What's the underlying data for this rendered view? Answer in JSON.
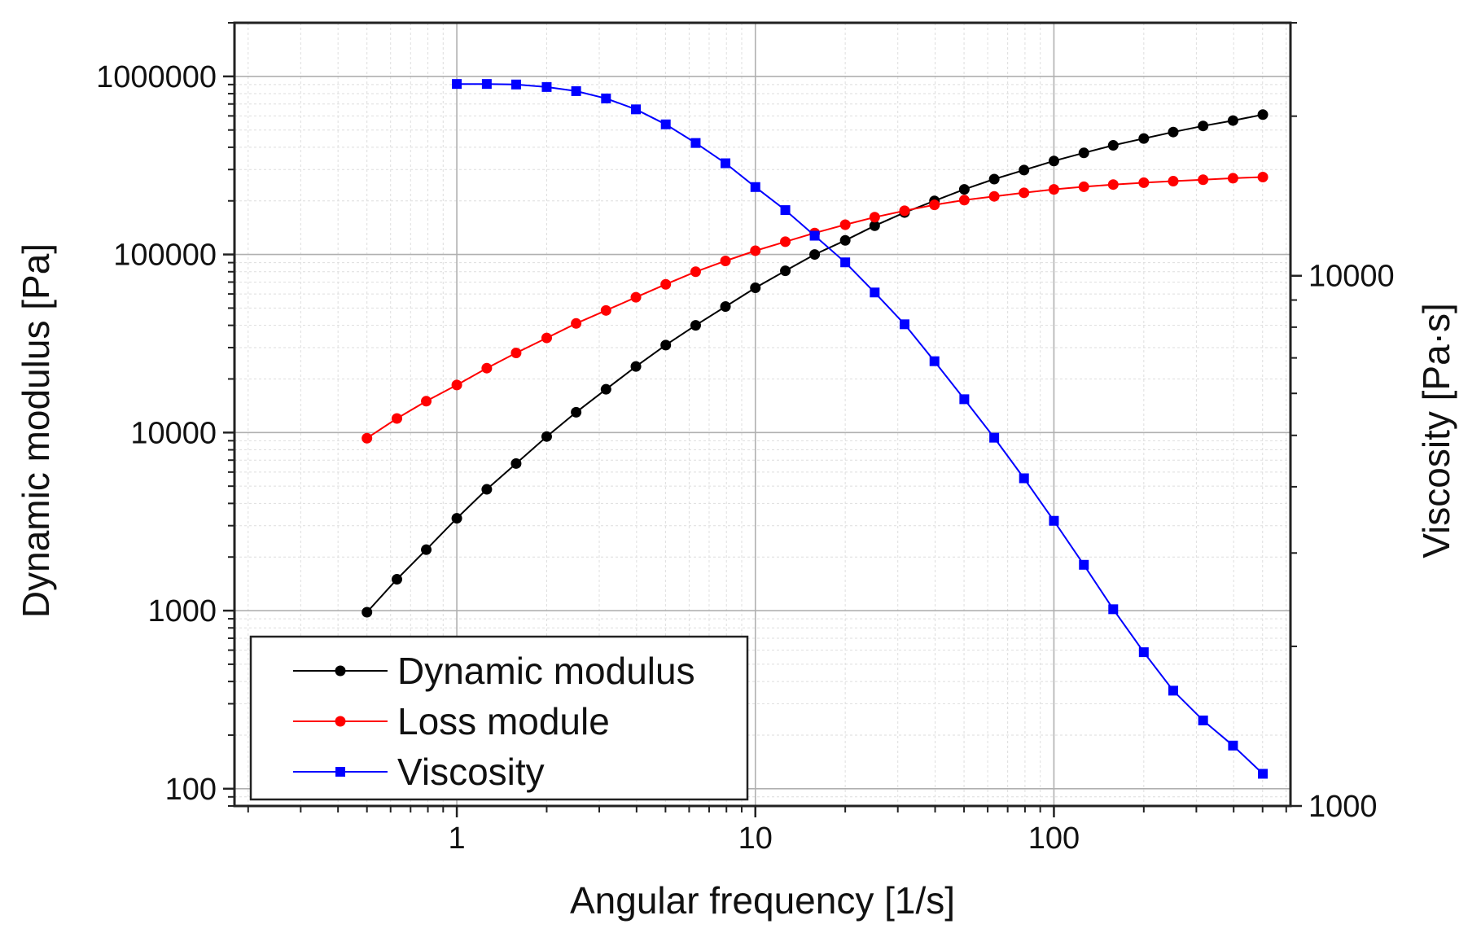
{
  "chart_data": {
    "type": "line",
    "xscale": "log",
    "y1scale": "log",
    "y2scale": "log",
    "xlabel": "Angular frequency [1/s]",
    "ylabel": "Dynamic modulus [Pa]",
    "y2label": "Viscosity [Pa·s]",
    "xlim": [
      0.18,
      620
    ],
    "ylim": [
      80,
      2000000
    ],
    "y2lim": [
      1000,
      30000
    ],
    "x_ticks": [
      1,
      10,
      100
    ],
    "x_tick_labels": [
      "1",
      "10",
      "100"
    ],
    "y_ticks": [
      100,
      1000,
      10000,
      100000,
      1000000
    ],
    "y_tick_labels": [
      "100",
      "1000",
      "10000",
      "100000",
      "1000000"
    ],
    "y2_ticks": [
      1000,
      10000
    ],
    "y2_tick_labels": [
      "1000",
      "10000"
    ],
    "grid": true,
    "legend_position": "bottom-left",
    "series": [
      {
        "name": "Dynamic modulus",
        "axis": "left",
        "color": "#000000",
        "x": [
          0.5,
          0.63,
          0.79,
          1,
          1.26,
          1.58,
          2,
          2.51,
          3.16,
          3.98,
          5.01,
          6.31,
          7.94,
          10,
          12.6,
          15.8,
          20,
          25.1,
          31.6,
          39.8,
          50.1,
          63.1,
          79.4,
          100,
          126,
          158,
          200,
          251,
          316,
          398,
          501
        ],
        "values": [
          980,
          1500,
          2200,
          3300,
          4800,
          6700,
          9500,
          13000,
          17500,
          23500,
          31000,
          40000,
          51000,
          65000,
          81000,
          100000,
          120000,
          145000,
          172000,
          200000,
          232000,
          265000,
          298000,
          335000,
          372000,
          410000,
          448000,
          487000,
          527000,
          565000,
          610000
        ]
      },
      {
        "name": "Loss module",
        "axis": "left",
        "color": "#ff0000",
        "x": [
          0.5,
          0.63,
          0.79,
          1,
          1.26,
          1.58,
          2,
          2.51,
          3.16,
          3.98,
          5.01,
          6.31,
          7.94,
          10,
          12.6,
          15.8,
          20,
          25.1,
          31.6,
          39.8,
          50.1,
          63.1,
          79.4,
          100,
          126,
          158,
          200,
          251,
          316,
          398,
          501
        ],
        "values": [
          9300,
          12000,
          15000,
          18500,
          23000,
          28000,
          34000,
          41000,
          48500,
          57500,
          68000,
          80000,
          92000,
          105000,
          118000,
          132000,
          147000,
          162000,
          176000,
          190000,
          202000,
          212000,
          222000,
          232000,
          240000,
          247000,
          253000,
          258000,
          263000,
          268000,
          272000
        ]
      },
      {
        "name": "Viscosity",
        "axis": "right",
        "color": "#0000ff",
        "x": [
          1,
          1.26,
          1.58,
          2,
          2.51,
          3.16,
          3.98,
          5.01,
          6.31,
          7.94,
          10,
          12.6,
          15.8,
          20,
          25.1,
          31.6,
          39.8,
          50.1,
          63.1,
          79.4,
          100,
          126,
          158,
          200,
          251,
          316,
          398,
          501
        ],
        "values": [
          23000,
          23000,
          22950,
          22700,
          22300,
          21600,
          20600,
          19300,
          17800,
          16300,
          14700,
          13300,
          11900,
          10600,
          9300,
          8100,
          6900,
          5850,
          4950,
          4150,
          3450,
          2850,
          2350,
          1950,
          1650,
          1450,
          1300,
          1150
        ]
      }
    ],
    "legend": [
      "Dynamic modulus",
      "Loss module",
      "Viscosity"
    ]
  }
}
